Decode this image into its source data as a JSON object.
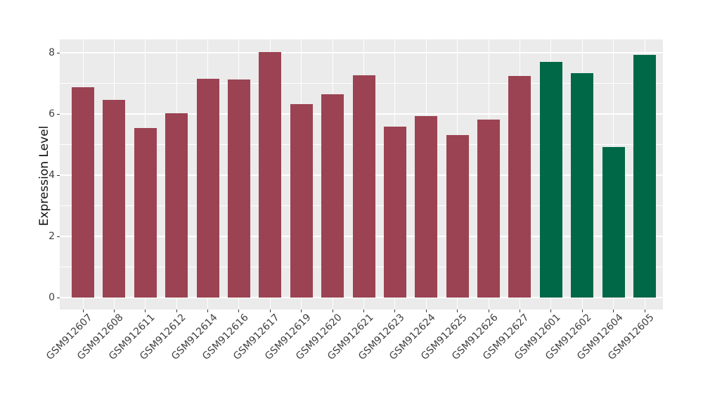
{
  "chart_data": {
    "type": "bar",
    "title": "",
    "xlabel": "",
    "ylabel": "Expression Level",
    "categories": [
      "GSM912607",
      "GSM912608",
      "GSM912611",
      "GSM912612",
      "GSM912614",
      "GSM912616",
      "GSM912617",
      "GSM912619",
      "GSM912620",
      "GSM912621",
      "GSM912623",
      "GSM912624",
      "GSM912625",
      "GSM912626",
      "GSM912627",
      "GSM912601",
      "GSM912602",
      "GSM912604",
      "GSM912605"
    ],
    "values": [
      6.87,
      6.45,
      5.54,
      6.02,
      7.16,
      7.13,
      8.02,
      6.32,
      6.65,
      7.27,
      5.59,
      5.94,
      5.3,
      5.82,
      7.24,
      7.7,
      7.33,
      4.91,
      7.92
    ],
    "bar_groups": [
      "red",
      "red",
      "red",
      "red",
      "red",
      "red",
      "red",
      "red",
      "red",
      "red",
      "red",
      "red",
      "red",
      "red",
      "red",
      "green",
      "green",
      "green",
      "green"
    ],
    "ylim": [
      -0.4,
      8.4
    ],
    "yticks_major": [
      0,
      2,
      4,
      6,
      8
    ],
    "yticks_minor": [
      1,
      3,
      5,
      7
    ],
    "grid": "on",
    "legend": "none",
    "colors": {
      "red_bar": "#9B4352",
      "green_bar": "#006847",
      "panel_background": "#EBEBEB",
      "gridline": "#FFFFFF",
      "axis_text": "#404040",
      "tick_mark": "#333333"
    }
  }
}
